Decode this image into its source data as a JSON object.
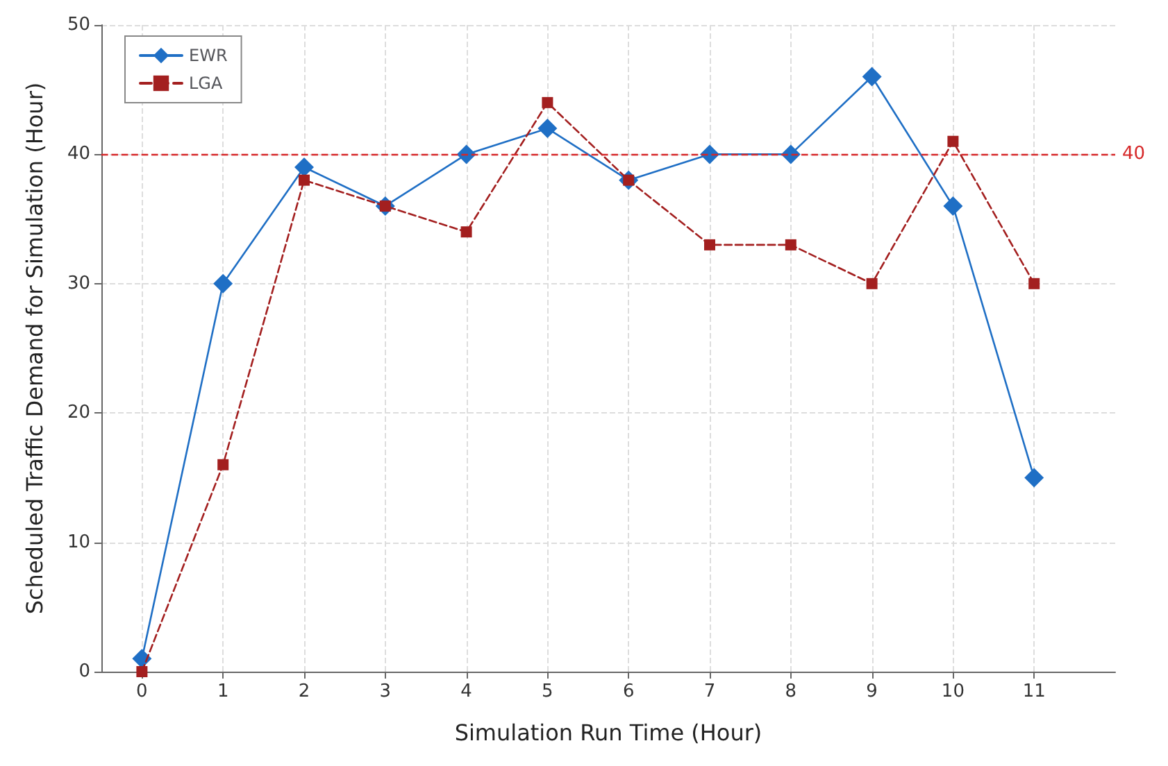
{
  "chart_data": {
    "type": "line",
    "xlabel": "Simulation Run Time (Hour)",
    "ylabel": "Scheduled Traffic Demand for Simulation (Hour)",
    "x": [
      0,
      1,
      2,
      3,
      4,
      5,
      6,
      7,
      8,
      9,
      10,
      11
    ],
    "series": [
      {
        "name": "EWR",
        "color": "#1f6fc5",
        "marker": "diamond",
        "line_style": "solid",
        "values": [
          1,
          30,
          39,
          36,
          40,
          42,
          38,
          40,
          40,
          46,
          36,
          15
        ]
      },
      {
        "name": "LGA",
        "color": "#a31f1f",
        "marker": "square",
        "line_style": "dashed",
        "values": [
          0,
          16,
          38,
          36,
          34,
          44,
          38,
          33,
          33,
          30,
          41,
          30
        ]
      }
    ],
    "xlim": [
      -0.5,
      12
    ],
    "xticks": [
      0,
      1,
      2,
      3,
      4,
      5,
      6,
      7,
      8,
      9,
      10,
      11
    ],
    "ylim": [
      0,
      50
    ],
    "yticks": [
      0,
      10,
      20,
      30,
      40,
      50
    ],
    "ref_lines": [
      {
        "axis": "y",
        "value": 40,
        "label": "40",
        "color": "#d62728",
        "line_style": "dashed"
      }
    ],
    "grid": true,
    "legend": "top left"
  }
}
